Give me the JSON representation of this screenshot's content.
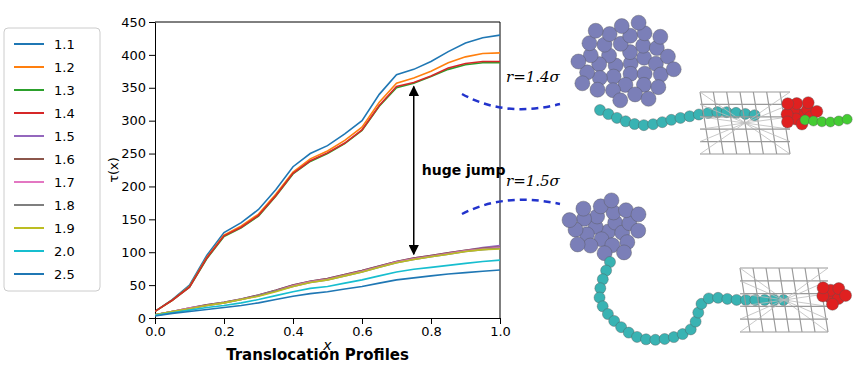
{
  "chart_data": {
    "type": "line",
    "title": "Translocation Profiles",
    "x_label": "x",
    "y_label": "τ(x)",
    "annotations": [
      "huge jump",
      "r=1.4σ",
      "r=1.5σ"
    ],
    "x": [
      0,
      0.05,
      0.1,
      0.15,
      0.2,
      0.25,
      0.3,
      0.35,
      0.4,
      0.45,
      0.5,
      0.55,
      0.6,
      0.65,
      0.7,
      0.75,
      0.8,
      0.85,
      0.9,
      0.95,
      1
    ],
    "xlim": [
      0,
      1
    ],
    "ylim": [
      0,
      450
    ],
    "xticks": [
      {
        "value": 0,
        "label": "0.0"
      },
      {
        "value": 0.2,
        "label": "0.2"
      },
      {
        "value": 0.4,
        "label": "0.4"
      },
      {
        "value": 0.6,
        "label": "0.6"
      },
      {
        "value": 0.8,
        "label": "0.8"
      },
      {
        "value": 1,
        "label": "1.0"
      }
    ],
    "yticks": [
      0,
      50,
      100,
      150,
      200,
      250,
      300,
      350,
      400,
      450
    ],
    "legend": "left",
    "grid": false,
    "series": [
      {
        "name": "1.1",
        "color": "#1f77b4",
        "values": [
          10,
          28,
          50,
          95,
          130,
          145,
          165,
          195,
          230,
          250,
          262,
          280,
          300,
          340,
          370,
          378,
          390,
          405,
          418,
          426,
          430
        ]
      },
      {
        "name": "1.2",
        "color": "#ff7f0e",
        "values": [
          10,
          27,
          48,
          92,
          126,
          140,
          158,
          188,
          222,
          242,
          254,
          270,
          290,
          328,
          357,
          365,
          375,
          388,
          397,
          402,
          403
        ]
      },
      {
        "name": "1.3",
        "color": "#2ca02c",
        "values": [
          10,
          27,
          47,
          90,
          124,
          137,
          155,
          185,
          219,
          238,
          250,
          265,
          285,
          322,
          350,
          357,
          367,
          378,
          385,
          388,
          388
        ]
      },
      {
        "name": "1.4",
        "color": "#d62728",
        "values": [
          10,
          27,
          47,
          91,
          125,
          138,
          156,
          186,
          220,
          239,
          251,
          266,
          286,
          323,
          352,
          358,
          368,
          380,
          387,
          390,
          390
        ]
      },
      {
        "name": "1.5",
        "color": "#9467bd",
        "values": [
          5,
          10,
          15,
          20,
          24,
          29,
          35,
          42,
          50,
          56,
          60,
          66,
          72,
          79,
          86,
          91,
          95,
          99,
          103,
          107,
          110
        ]
      },
      {
        "name": "1.6",
        "color": "#8c564b",
        "values": [
          5,
          10,
          15,
          20,
          24,
          29,
          35,
          42,
          50,
          56,
          60,
          66,
          72,
          79,
          86,
          91,
          95,
          99,
          103,
          106,
          108
        ]
      },
      {
        "name": "1.7",
        "color": "#e377c2",
        "values": [
          5,
          10,
          15,
          19,
          23,
          28,
          34,
          41,
          49,
          55,
          59,
          65,
          71,
          78,
          85,
          90,
          94,
          98,
          102,
          105,
          107
        ]
      },
      {
        "name": "1.8",
        "color": "#7f7f7f",
        "values": [
          5,
          10,
          14,
          19,
          23,
          28,
          34,
          41,
          48,
          54,
          58,
          64,
          70,
          77,
          84,
          89,
          93,
          97,
          101,
          104,
          106
        ]
      },
      {
        "name": "1.9",
        "color": "#bcbd22",
        "values": [
          5,
          10,
          14,
          19,
          23,
          28,
          33,
          40,
          48,
          54,
          58,
          64,
          70,
          77,
          84,
          89,
          93,
          97,
          101,
          104,
          105
        ]
      },
      {
        "name": "2.0",
        "color": "#17becf",
        "values": [
          4,
          8,
          12,
          16,
          19,
          23,
          28,
          34,
          40,
          45,
          48,
          53,
          58,
          64,
          70,
          74,
          77,
          80,
          83,
          86,
          88
        ]
      },
      {
        "name": "2.5",
        "color": "#1f77b4",
        "values": [
          3,
          7,
          10,
          13,
          16,
          19,
          23,
          28,
          33,
          37,
          40,
          44,
          48,
          53,
          58,
          61,
          64,
          67,
          69,
          71,
          73
        ]
      }
    ]
  }
}
